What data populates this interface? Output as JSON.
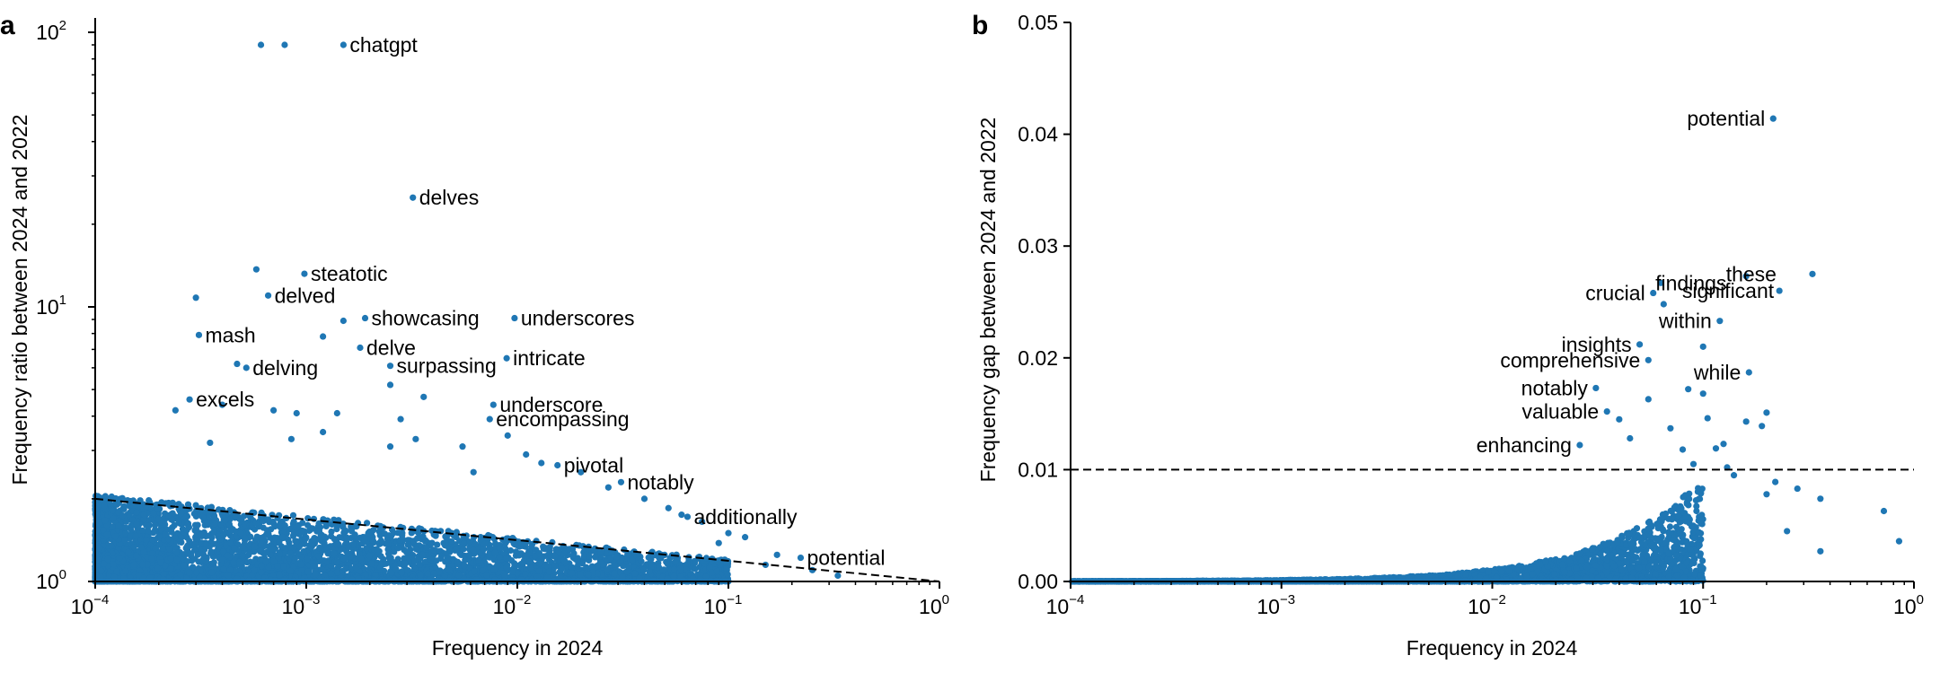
{
  "chart_data": [
    {
      "panel": "a",
      "type": "scatter",
      "title": "",
      "xlabel": "Frequency in 2024",
      "ylabel": "Frequency ratio between 2024 and 2022",
      "xscale": "log",
      "yscale": "log",
      "xlim": [
        0.0001,
        1
      ],
      "ylim": [
        1,
        100
      ],
      "xtick_labels": [
        "10^-4",
        "10^-3",
        "10^-2",
        "10^-1",
        "10^0"
      ],
      "ytick_labels": [
        "10^0",
        "10^1",
        "10^2"
      ],
      "color": "#1f77b4",
      "reference_line": {
        "style": "dashed",
        "from": [
          0.0001,
          2.0
        ],
        "to": [
          1,
          1.0
        ]
      },
      "labeled_points": [
        {
          "label": "chatgpt",
          "x": 0.0015,
          "y": 90
        },
        {
          "label": "delves",
          "x": 0.0032,
          "y": 25
        },
        {
          "label": "steatotic",
          "x": 0.00098,
          "y": 13.2
        },
        {
          "label": "delved",
          "x": 0.00066,
          "y": 11.0
        },
        {
          "label": "showcasing",
          "x": 0.0019,
          "y": 9.1
        },
        {
          "label": "underscores",
          "x": 0.0097,
          "y": 9.1
        },
        {
          "label": "mash",
          "x": 0.00031,
          "y": 7.9
        },
        {
          "label": "delve",
          "x": 0.0018,
          "y": 7.1
        },
        {
          "label": "intricate",
          "x": 0.0089,
          "y": 6.5
        },
        {
          "label": "delving",
          "x": 0.00052,
          "y": 6.0
        },
        {
          "label": "surpassing",
          "x": 0.0025,
          "y": 6.1
        },
        {
          "label": "excels",
          "x": 0.00028,
          "y": 4.6
        },
        {
          "label": "underscore",
          "x": 0.0077,
          "y": 4.4
        },
        {
          "label": "encompassing",
          "x": 0.0074,
          "y": 3.9
        },
        {
          "label": "pivotal",
          "x": 0.0155,
          "y": 2.65
        },
        {
          "label": "notably",
          "x": 0.031,
          "y": 2.3
        },
        {
          "label": "additionally",
          "x": 0.064,
          "y": 1.72
        },
        {
          "label": "potential",
          "x": 0.22,
          "y": 1.22
        }
      ],
      "unlabeled_points": [
        {
          "x": 0.00061,
          "y": 90
        },
        {
          "x": 0.00079,
          "y": 90
        },
        {
          "x": 0.00058,
          "y": 13.7
        },
        {
          "x": 0.0003,
          "y": 10.8
        },
        {
          "x": 0.0012,
          "y": 7.8
        },
        {
          "x": 0.0015,
          "y": 8.9
        },
        {
          "x": 0.00047,
          "y": 6.2
        },
        {
          "x": 0.0025,
          "y": 5.2
        },
        {
          "x": 0.0036,
          "y": 4.7
        },
        {
          "x": 0.00024,
          "y": 4.2
        },
        {
          "x": 0.0004,
          "y": 4.4
        },
        {
          "x": 0.0007,
          "y": 4.2
        },
        {
          "x": 0.0009,
          "y": 4.1
        },
        {
          "x": 0.0014,
          "y": 4.1
        },
        {
          "x": 0.0028,
          "y": 3.9
        },
        {
          "x": 0.009,
          "y": 3.4
        },
        {
          "x": 0.0012,
          "y": 3.5
        },
        {
          "x": 0.00035,
          "y": 3.2
        },
        {
          "x": 0.00085,
          "y": 3.3
        },
        {
          "x": 0.0025,
          "y": 3.1
        },
        {
          "x": 0.0033,
          "y": 3.3
        },
        {
          "x": 0.0055,
          "y": 3.1
        },
        {
          "x": 0.011,
          "y": 2.9
        },
        {
          "x": 0.013,
          "y": 2.7
        },
        {
          "x": 0.02,
          "y": 2.5
        },
        {
          "x": 0.0062,
          "y": 2.5
        },
        {
          "x": 0.027,
          "y": 2.2
        },
        {
          "x": 0.04,
          "y": 2.0
        },
        {
          "x": 0.052,
          "y": 1.85
        },
        {
          "x": 0.06,
          "y": 1.75
        },
        {
          "x": 0.075,
          "y": 1.65
        },
        {
          "x": 0.1,
          "y": 1.5
        },
        {
          "x": 0.12,
          "y": 1.45
        },
        {
          "x": 0.09,
          "y": 1.38
        },
        {
          "x": 0.17,
          "y": 1.25
        },
        {
          "x": 0.33,
          "y": 1.05
        },
        {
          "x": 0.25,
          "y": 1.1
        },
        {
          "x": 0.15,
          "y": 1.15
        }
      ],
      "dense_region": "approximately 10^-4 to 10^-1 in x, 1 to 2 in y"
    },
    {
      "panel": "b",
      "type": "scatter",
      "title": "",
      "xlabel": "Frequency in 2024",
      "ylabel": "Frequency gap between 2024 and 2022",
      "xscale": "log",
      "yscale": "linear",
      "xlim": [
        0.0001,
        1
      ],
      "ylim": [
        0,
        0.05
      ],
      "xtick_labels": [
        "10^-4",
        "10^-3",
        "10^-2",
        "10^-1",
        "10^0"
      ],
      "ytick_labels": [
        "0.00",
        "0.01",
        "0.02",
        "0.03",
        "0.04",
        "0.05"
      ],
      "color": "#1f77b4",
      "reference_line": {
        "style": "dashed",
        "y": 0.01
      },
      "labeled_points": [
        {
          "label": "potential",
          "x": 0.215,
          "y": 0.0414
        },
        {
          "label": "findings",
          "x": 0.063,
          "y": 0.0267
        },
        {
          "label": "these",
          "x": 0.33,
          "y": 0.0275
        },
        {
          "label": "crucial",
          "x": 0.058,
          "y": 0.0258
        },
        {
          "label": "significant",
          "x": 0.23,
          "y": 0.026
        },
        {
          "label": "within",
          "x": 0.12,
          "y": 0.0233
        },
        {
          "label": "insights",
          "x": 0.05,
          "y": 0.0212
        },
        {
          "label": "comprehensive",
          "x": 0.055,
          "y": 0.0198
        },
        {
          "label": "while",
          "x": 0.165,
          "y": 0.0187
        },
        {
          "label": "notably",
          "x": 0.031,
          "y": 0.0173
        },
        {
          "label": "valuable",
          "x": 0.035,
          "y": 0.0152
        },
        {
          "label": "enhancing",
          "x": 0.026,
          "y": 0.0122
        }
      ],
      "unlabeled_points": [
        {
          "x": 0.065,
          "y": 0.0248
        },
        {
          "x": 0.16,
          "y": 0.0273
        },
        {
          "x": 0.1,
          "y": 0.021
        },
        {
          "x": 0.1,
          "y": 0.0168
        },
        {
          "x": 0.085,
          "y": 0.0172
        },
        {
          "x": 0.055,
          "y": 0.0163
        },
        {
          "x": 0.2,
          "y": 0.0151
        },
        {
          "x": 0.105,
          "y": 0.0146
        },
        {
          "x": 0.16,
          "y": 0.0143
        },
        {
          "x": 0.04,
          "y": 0.0145
        },
        {
          "x": 0.07,
          "y": 0.0137
        },
        {
          "x": 0.19,
          "y": 0.0139
        },
        {
          "x": 0.125,
          "y": 0.0123
        },
        {
          "x": 0.115,
          "y": 0.0119
        },
        {
          "x": 0.08,
          "y": 0.0118
        },
        {
          "x": 0.045,
          "y": 0.0128
        },
        {
          "x": 0.36,
          "y": 0.0074
        },
        {
          "x": 0.72,
          "y": 0.0063
        },
        {
          "x": 0.85,
          "y": 0.0036
        },
        {
          "x": 0.36,
          "y": 0.0027
        },
        {
          "x": 0.25,
          "y": 0.0045
        },
        {
          "x": 0.2,
          "y": 0.0078
        },
        {
          "x": 0.28,
          "y": 0.0083
        },
        {
          "x": 0.22,
          "y": 0.0089
        },
        {
          "x": 0.13,
          "y": 0.0102
        },
        {
          "x": 0.09,
          "y": 0.0105
        },
        {
          "x": 0.14,
          "y": 0.0095
        }
      ],
      "dense_region": "rises from near 0 at x=10^-4 to about 0.01 at x=10^-1"
    }
  ],
  "panels": [
    {
      "letter": "a",
      "xlabel": "Frequency in 2024",
      "ylabel": "Frequency ratio between 2024 and 2022",
      "xticks": [
        {
          "base": "10",
          "exp": "−4"
        },
        {
          "base": "10",
          "exp": "−3"
        },
        {
          "base": "10",
          "exp": "−2"
        },
        {
          "base": "10",
          "exp": "−1"
        },
        {
          "base": "10",
          "exp": "0"
        }
      ],
      "yticks": [
        {
          "base": "10",
          "exp": "0"
        },
        {
          "base": "10",
          "exp": "1"
        },
        {
          "base": "10",
          "exp": "2"
        }
      ]
    },
    {
      "letter": "b",
      "xlabel": "Frequency in 2024",
      "ylabel": "Frequency gap between 2024 and 2022",
      "xticks": [
        {
          "base": "10",
          "exp": "−4"
        },
        {
          "base": "10",
          "exp": "−3"
        },
        {
          "base": "10",
          "exp": "−2"
        },
        {
          "base": "10",
          "exp": "−1"
        },
        {
          "base": "10",
          "exp": "0"
        }
      ],
      "yticks": [
        "0.00",
        "0.01",
        "0.02",
        "0.03",
        "0.04",
        "0.05"
      ]
    }
  ]
}
